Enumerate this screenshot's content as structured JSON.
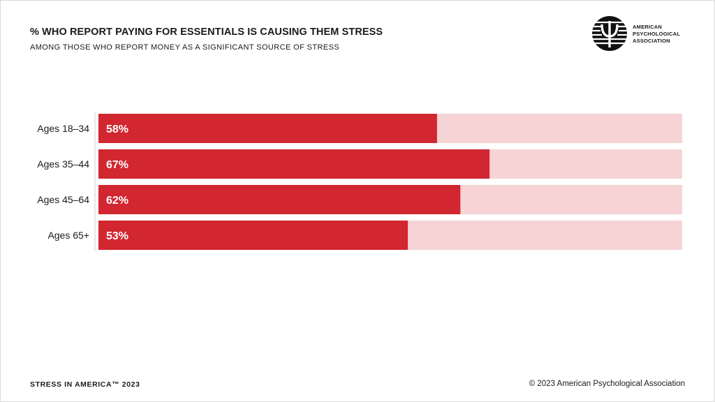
{
  "header": {
    "title": "% WHO REPORT PAYING FOR ESSENTIALS IS CAUSING THEM STRESS",
    "subtitle": "AMONG THOSE WHO REPORT MONEY AS A SIGNIFICANT SOURCE OF STRESS"
  },
  "logo": {
    "icon": "psi-logo-icon",
    "lines": [
      "AMERICAN",
      "PSYCHOLOGICAL",
      "ASSOCIATION"
    ]
  },
  "chart_data": {
    "type": "bar",
    "orientation": "horizontal",
    "title": "% WHO REPORT PAYING FOR ESSENTIALS IS CAUSING THEM STRESS",
    "subtitle": "AMONG THOSE WHO REPORT MONEY AS A SIGNIFICANT SOURCE OF STRESS",
    "categories": [
      "Ages 18–34",
      "Ages 35–44",
      "Ages 45–64",
      "Ages 65+"
    ],
    "values": [
      58,
      67,
      62,
      53
    ],
    "data_labels": [
      "58%",
      "67%",
      "62%",
      "53%"
    ],
    "xlim": [
      0,
      100
    ],
    "unit": "%",
    "grid": false,
    "colors": {
      "bar": "#d22630",
      "track": "#f6d4d6",
      "label_on_bar": "#ffffff"
    }
  },
  "footer": {
    "left": "STRESS IN AMERICA™ 2023",
    "right": "© 2023 American Psychological Association"
  }
}
